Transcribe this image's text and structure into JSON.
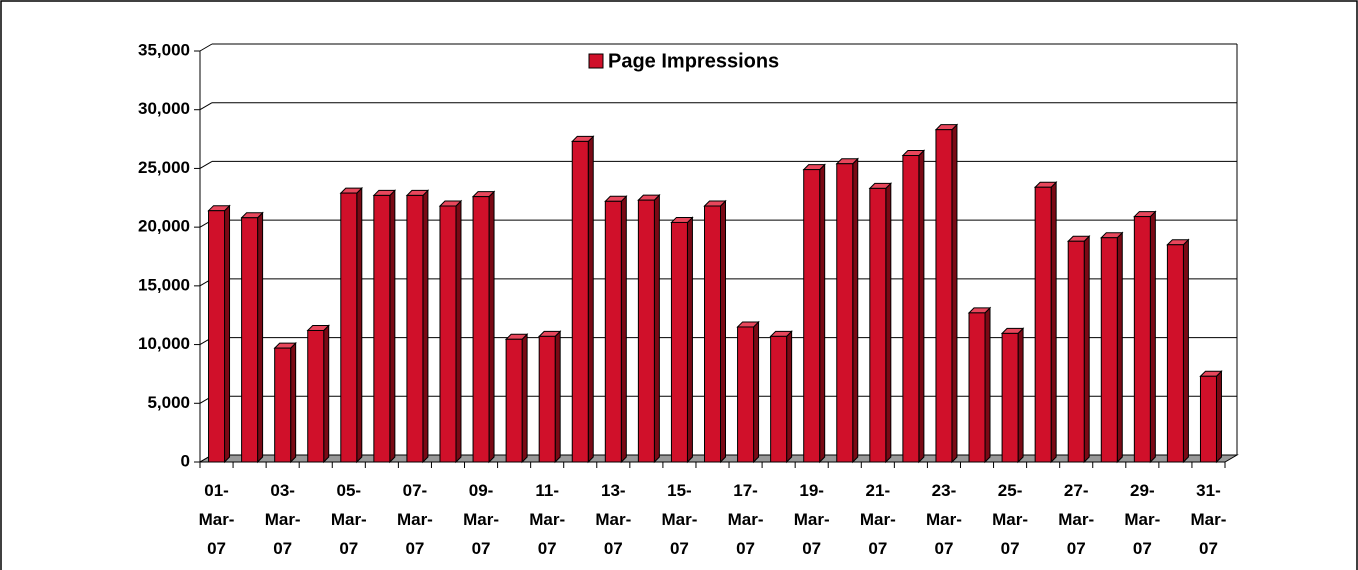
{
  "chart_data": {
    "type": "bar3d",
    "categories": [
      "01-Mar-07",
      null,
      "03-Mar-07",
      null,
      "05-Mar-07",
      null,
      "07-Mar-07",
      null,
      "09-Mar-07",
      null,
      "11-Mar-07",
      null,
      "13-Mar-07",
      null,
      "15-Mar-07",
      null,
      "17-Mar-07",
      null,
      "19-Mar-07",
      null,
      "21-Mar-07",
      null,
      "23-Mar-07",
      null,
      "25-Mar-07",
      null,
      "27-Mar-07",
      null,
      "29-Mar-07",
      null,
      "31-Mar-07"
    ],
    "series": [
      {
        "name": "Page Impressions",
        "color": "#d0102a",
        "values": [
          21400,
          20800,
          9700,
          11200,
          22900,
          22700,
          22700,
          21800,
          22600,
          10450,
          10700,
          27300,
          22200,
          22300,
          20400,
          21800,
          11500,
          10700,
          24900,
          25400,
          23300,
          26100,
          28300,
          12700,
          10950,
          23400,
          18800,
          19100,
          20900,
          18500,
          7300
        ]
      }
    ],
    "ylim": [
      0,
      35000
    ],
    "yticks": [
      0,
      {
        "value": 5000,
        "label": "5,000"
      },
      {
        "value": 10000,
        "label": "10,000"
      },
      {
        "value": 15000,
        "label": "15,000"
      },
      {
        "value": 20000,
        "label": "20,000"
      },
      {
        "value": 25000,
        "label": "25,000"
      },
      {
        "value": 30000,
        "label": "30,000"
      },
      {
        "value": 35000,
        "label": "35,000"
      }
    ],
    "grid": true,
    "legend": "top"
  }
}
